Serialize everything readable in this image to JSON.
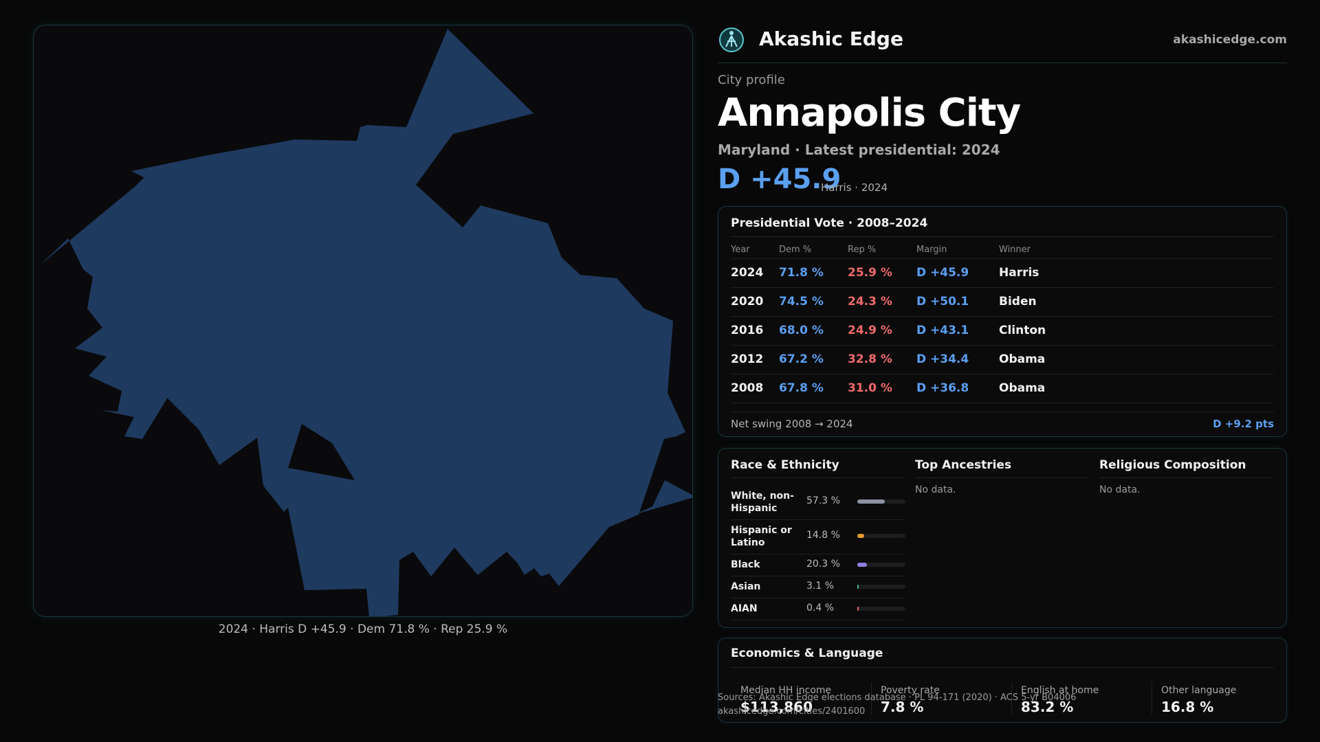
{
  "brand": {
    "name": "Akashic Edge",
    "site": "akashicedge.com",
    "logo_icon": "akashic-logo-icon"
  },
  "profile": {
    "kicker": "City profile",
    "title": "Annapolis City",
    "subtitle": "Maryland · Latest presidential: 2024",
    "margin": "D +45.9",
    "margin_note": "Harris · 2024"
  },
  "map": {
    "caption": "2024 · Harris D +45.9 · Dem 71.8 % · Rep 25.9 %",
    "fill_color": "#1f3a5f"
  },
  "presidential": {
    "title": "Presidential Vote · 2008–2024",
    "columns": [
      "Year",
      "Dem %",
      "Rep %",
      "Margin",
      "Winner"
    ],
    "rows": [
      {
        "year": "2024",
        "dem": "71.8 %",
        "rep": "25.9 %",
        "margin": "D +45.9",
        "winner": "Harris"
      },
      {
        "year": "2020",
        "dem": "74.5 %",
        "rep": "24.3 %",
        "margin": "D +50.1",
        "winner": "Biden"
      },
      {
        "year": "2016",
        "dem": "68.0 %",
        "rep": "24.9 %",
        "margin": "D +43.1",
        "winner": "Clinton"
      },
      {
        "year": "2012",
        "dem": "67.2 %",
        "rep": "32.8 %",
        "margin": "D +34.4",
        "winner": "Obama"
      },
      {
        "year": "2008",
        "dem": "67.8 %",
        "rep": "31.0 %",
        "margin": "D +36.8",
        "winner": "Obama"
      }
    ],
    "swing_label": "Net swing 2008 → 2024",
    "swing_value": "D +9.2 pts",
    "colors": {
      "dem": "#5b9ff0",
      "rep": "#ef6a6a"
    }
  },
  "demographics": {
    "race": {
      "title": "Race & Ethnicity",
      "rows": [
        {
          "name": "White, non-Hispanic",
          "pct": "57.3 %",
          "share": 0.573,
          "color": "#8c93a3"
        },
        {
          "name": "Hispanic or Latino",
          "pct": "14.8 %",
          "share": 0.148,
          "color": "#e59b2c"
        },
        {
          "name": "Black",
          "pct": "20.3 %",
          "share": 0.203,
          "color": "#8f7fe0"
        },
        {
          "name": "Asian",
          "pct": "3.1 %",
          "share": 0.031,
          "color": "#3fb98f"
        },
        {
          "name": "AIAN",
          "pct": "0.4 %",
          "share": 0.004,
          "color": "#e06a6a"
        }
      ]
    },
    "ancestries": {
      "title": "Top Ancestries",
      "empty": "No data."
    },
    "religion": {
      "title": "Religious Composition",
      "empty": "No data."
    }
  },
  "economics": {
    "title": "Economics & Language",
    "stats": [
      {
        "label": "Median HH income",
        "value": "$113,860"
      },
      {
        "label": "Poverty rate",
        "value": "7.8 %"
      },
      {
        "label": "English at home",
        "value": "83.2 %"
      },
      {
        "label": "Other language",
        "value": "16.8 %"
      }
    ]
  },
  "footer": {
    "sources": "Sources: Akashic Edge elections database · PL 94-171 (2020) · ACS 5-yr B04006",
    "url": "akashicedge.com/cities/2401600"
  }
}
